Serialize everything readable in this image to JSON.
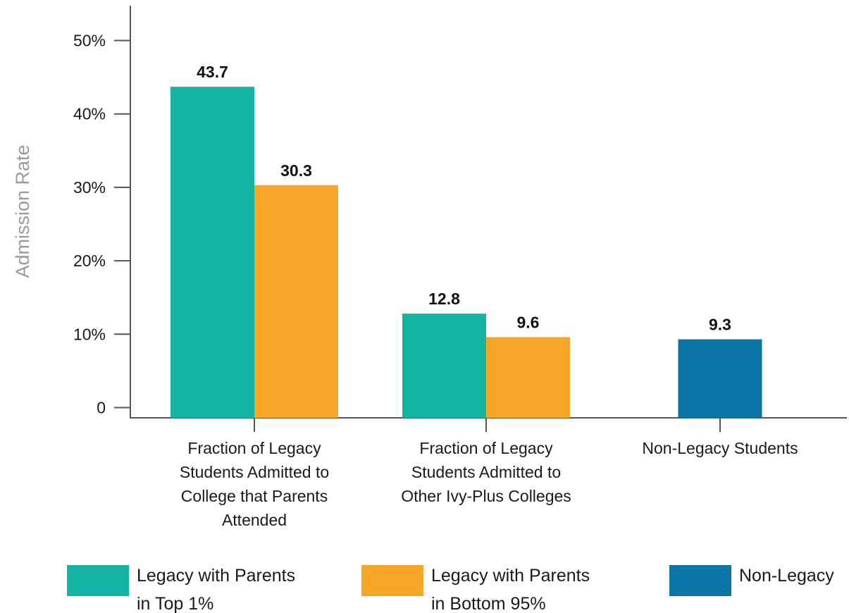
{
  "chart_data": {
    "type": "bar",
    "ylabel": "Admission Rate",
    "xlabel": "",
    "ylim": [
      0,
      50
    ],
    "yticks": [
      {
        "value": 0,
        "label": "0"
      },
      {
        "value": 10,
        "label": "10%"
      },
      {
        "value": 20,
        "label": "20%"
      },
      {
        "value": 30,
        "label": "30%"
      },
      {
        "value": 40,
        "label": "40%"
      },
      {
        "value": 50,
        "label": "50%"
      }
    ],
    "grid": false,
    "legend_position": "bottom",
    "categories": [
      {
        "lines": [
          "Fraction of Legacy",
          "Students Admitted to",
          "College that Parents",
          "Attended"
        ]
      },
      {
        "lines": [
          "Fraction of Legacy",
          "Students Admitted to",
          "Other Ivy-Plus Colleges"
        ]
      },
      {
        "lines": [
          "Non-Legacy Students"
        ]
      }
    ],
    "series": [
      {
        "name_lines": [
          "Legacy with Parents",
          "in Top 1%"
        ],
        "color": "#14b3a4"
      },
      {
        "name_lines": [
          "Legacy with Parents",
          "in Bottom 95%"
        ],
        "color": "#f7a526"
      },
      {
        "name_lines": [
          "Non-Legacy"
        ],
        "color": "#0875a6"
      }
    ],
    "bars": [
      {
        "category": 0,
        "series": 0,
        "value": 43.7,
        "label": "43.7"
      },
      {
        "category": 0,
        "series": 1,
        "value": 30.3,
        "label": "30.3"
      },
      {
        "category": 1,
        "series": 0,
        "value": 12.8,
        "label": "12.8"
      },
      {
        "category": 1,
        "series": 1,
        "value": 9.6,
        "label": "9.6"
      },
      {
        "category": 2,
        "series": 2,
        "value": 9.3,
        "label": "9.3"
      }
    ]
  }
}
